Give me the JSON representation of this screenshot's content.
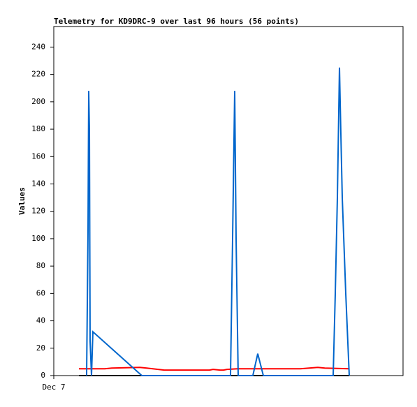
{
  "chart_data": {
    "type": "line",
    "title": "Telemetry for KD9DRC-9 over last 96 hours (56 points)",
    "y_label": "Values",
    "xlim": [
      0,
      100
    ],
    "xticks": [
      {
        "value": 0,
        "label": "Dec 7"
      }
    ],
    "ylim": [
      0,
      255
    ],
    "yticks": [
      0,
      20,
      40,
      60,
      80,
      100,
      120,
      140,
      160,
      180,
      200,
      220,
      240
    ],
    "grid": false,
    "series": [
      {
        "color": "#000000",
        "x": [
          7.2,
          84.6
        ],
        "values": [
          0,
          0
        ]
      },
      {
        "color": "#ff0000",
        "x": [
          7.2,
          14.6,
          16.6,
          24.6,
          26.6,
          31.6,
          44.6,
          45.6,
          47.6,
          48.6,
          49.6,
          52.6,
          70.6,
          75.6,
          77.6,
          84.6
        ],
        "values": [
          5,
          5,
          5.5,
          6,
          5.5,
          4,
          4,
          4.5,
          4,
          4,
          4.5,
          5,
          5,
          6,
          5.5,
          5
        ]
      },
      {
        "color": "#0066cc",
        "x": [
          9.4,
          9.8,
          10,
          10.2,
          10.4,
          10.8,
          11.2,
          25.2,
          50.6,
          51.2,
          51.8,
          52.2,
          52.8,
          57,
          58.4,
          60,
          80,
          80.6,
          81.2,
          81.8,
          82,
          82.6,
          83.6,
          84.6
        ],
        "values": [
          0,
          105,
          208,
          180,
          25,
          0,
          32,
          0,
          0,
          100,
          208,
          100,
          0,
          0,
          16,
          0,
          0,
          60,
          130,
          225,
          200,
          130,
          60,
          0
        ]
      }
    ]
  }
}
